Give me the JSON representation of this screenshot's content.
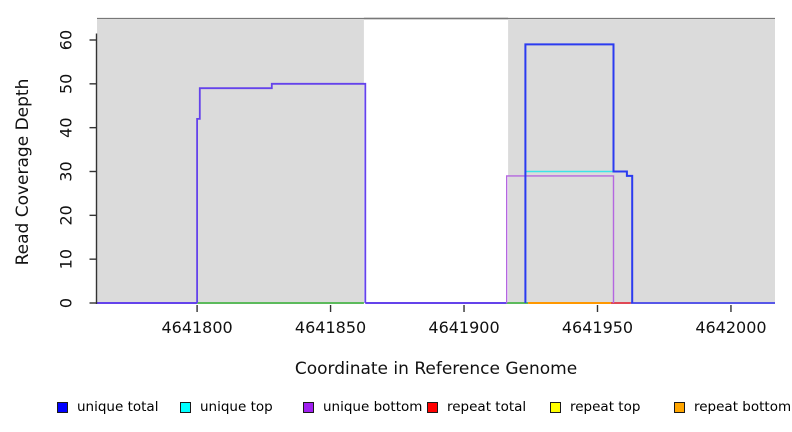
{
  "chart_data": {
    "type": "line",
    "title": "",
    "xlabel": "Coordinate in Reference Genome",
    "ylabel": "Read Coverage Depth",
    "xlim": [
      4641762.5,
      4642016.5
    ],
    "ylim": [
      0,
      65
    ],
    "y_axis_max_tick": 60,
    "grid": false,
    "x_ticks": [
      4641800,
      4641850,
      4641900,
      4641950,
      4642000
    ],
    "x_tick_labels": [
      "4641800",
      "4641850",
      "4641900",
      "4641950",
      "4642000"
    ],
    "y_ticks": [
      0,
      10,
      20,
      30,
      40,
      50,
      60
    ],
    "y_tick_labels": [
      "0",
      "10",
      "20",
      "30",
      "40",
      "50",
      "60"
    ],
    "shaded_regions": [
      {
        "start": 4641762.5,
        "end": 4641862.5,
        "color": "#DBDBDB"
      },
      {
        "start": 4641916.5,
        "end": 4642016.5,
        "color": "#DBDBDB"
      }
    ],
    "series": [
      {
        "name": "unique-bottom-region1",
        "color": "#6443EB",
        "width": 1.8,
        "points": [
          [
            4641800,
            0
          ],
          [
            4641800,
            42
          ],
          [
            4641801,
            42
          ],
          [
            4641801,
            49
          ],
          [
            4641828,
            49
          ],
          [
            4641828,
            50
          ],
          [
            4641863,
            50
          ],
          [
            4641863,
            0
          ]
        ]
      },
      {
        "name": "unique-bottom-region2",
        "color": "#B466E0",
        "width": 1.4,
        "points": [
          [
            4641916,
            0
          ],
          [
            4641916,
            29
          ],
          [
            4641956,
            29
          ],
          [
            4641956,
            0
          ]
        ]
      },
      {
        "name": "unique-top-region2",
        "color": "#3CE3E8",
        "width": 1.4,
        "points": [
          [
            4641923,
            0
          ],
          [
            4641923,
            30
          ],
          [
            4641961,
            30
          ],
          [
            4641961,
            29
          ],
          [
            4641963,
            29
          ],
          [
            4641963,
            0
          ]
        ]
      },
      {
        "name": "unique-total-region2",
        "color": "#2B3BF0",
        "width": 2,
        "points": [
          [
            4641923,
            0
          ],
          [
            4641923,
            59
          ],
          [
            4641956,
            59
          ],
          [
            4641956,
            30
          ],
          [
            4641961,
            30
          ],
          [
            4641961,
            29
          ],
          [
            4641963,
            29
          ],
          [
            4641963,
            0
          ]
        ]
      }
    ],
    "baseline_segments": [
      {
        "start": 4641762.5,
        "end": 4641800,
        "color": "#6443EB"
      },
      {
        "start": 4641800,
        "end": 4641862.5,
        "color": "#5CBA5C"
      },
      {
        "start": 4641863,
        "end": 4641916,
        "color": "#6443EB"
      },
      {
        "start": 4641916,
        "end": 4641924,
        "color": "#5CBA5C"
      },
      {
        "start": 4641924,
        "end": 4641955,
        "color": "#FF9800"
      },
      {
        "start": 4641955,
        "end": 4641962.5,
        "color": "#E04855"
      },
      {
        "start": 4641962.5,
        "end": 4642016.5,
        "color": "#5757E8"
      }
    ],
    "legend_position": "bottom",
    "legend": [
      {
        "label": "unique total",
        "color": "#0000FF"
      },
      {
        "label": "unique top",
        "color": "#00FFFF"
      },
      {
        "label": "unique bottom",
        "color": "#A020F0"
      },
      {
        "label": "repeat total",
        "color": "#FF0000"
      },
      {
        "label": "repeat top",
        "color": "#FFFF00"
      },
      {
        "label": "repeat bottom",
        "color": "#FFA500"
      }
    ],
    "colors": {
      "shading": "#DBDBDB",
      "axis": "#333333",
      "box_border": "#787878"
    }
  }
}
